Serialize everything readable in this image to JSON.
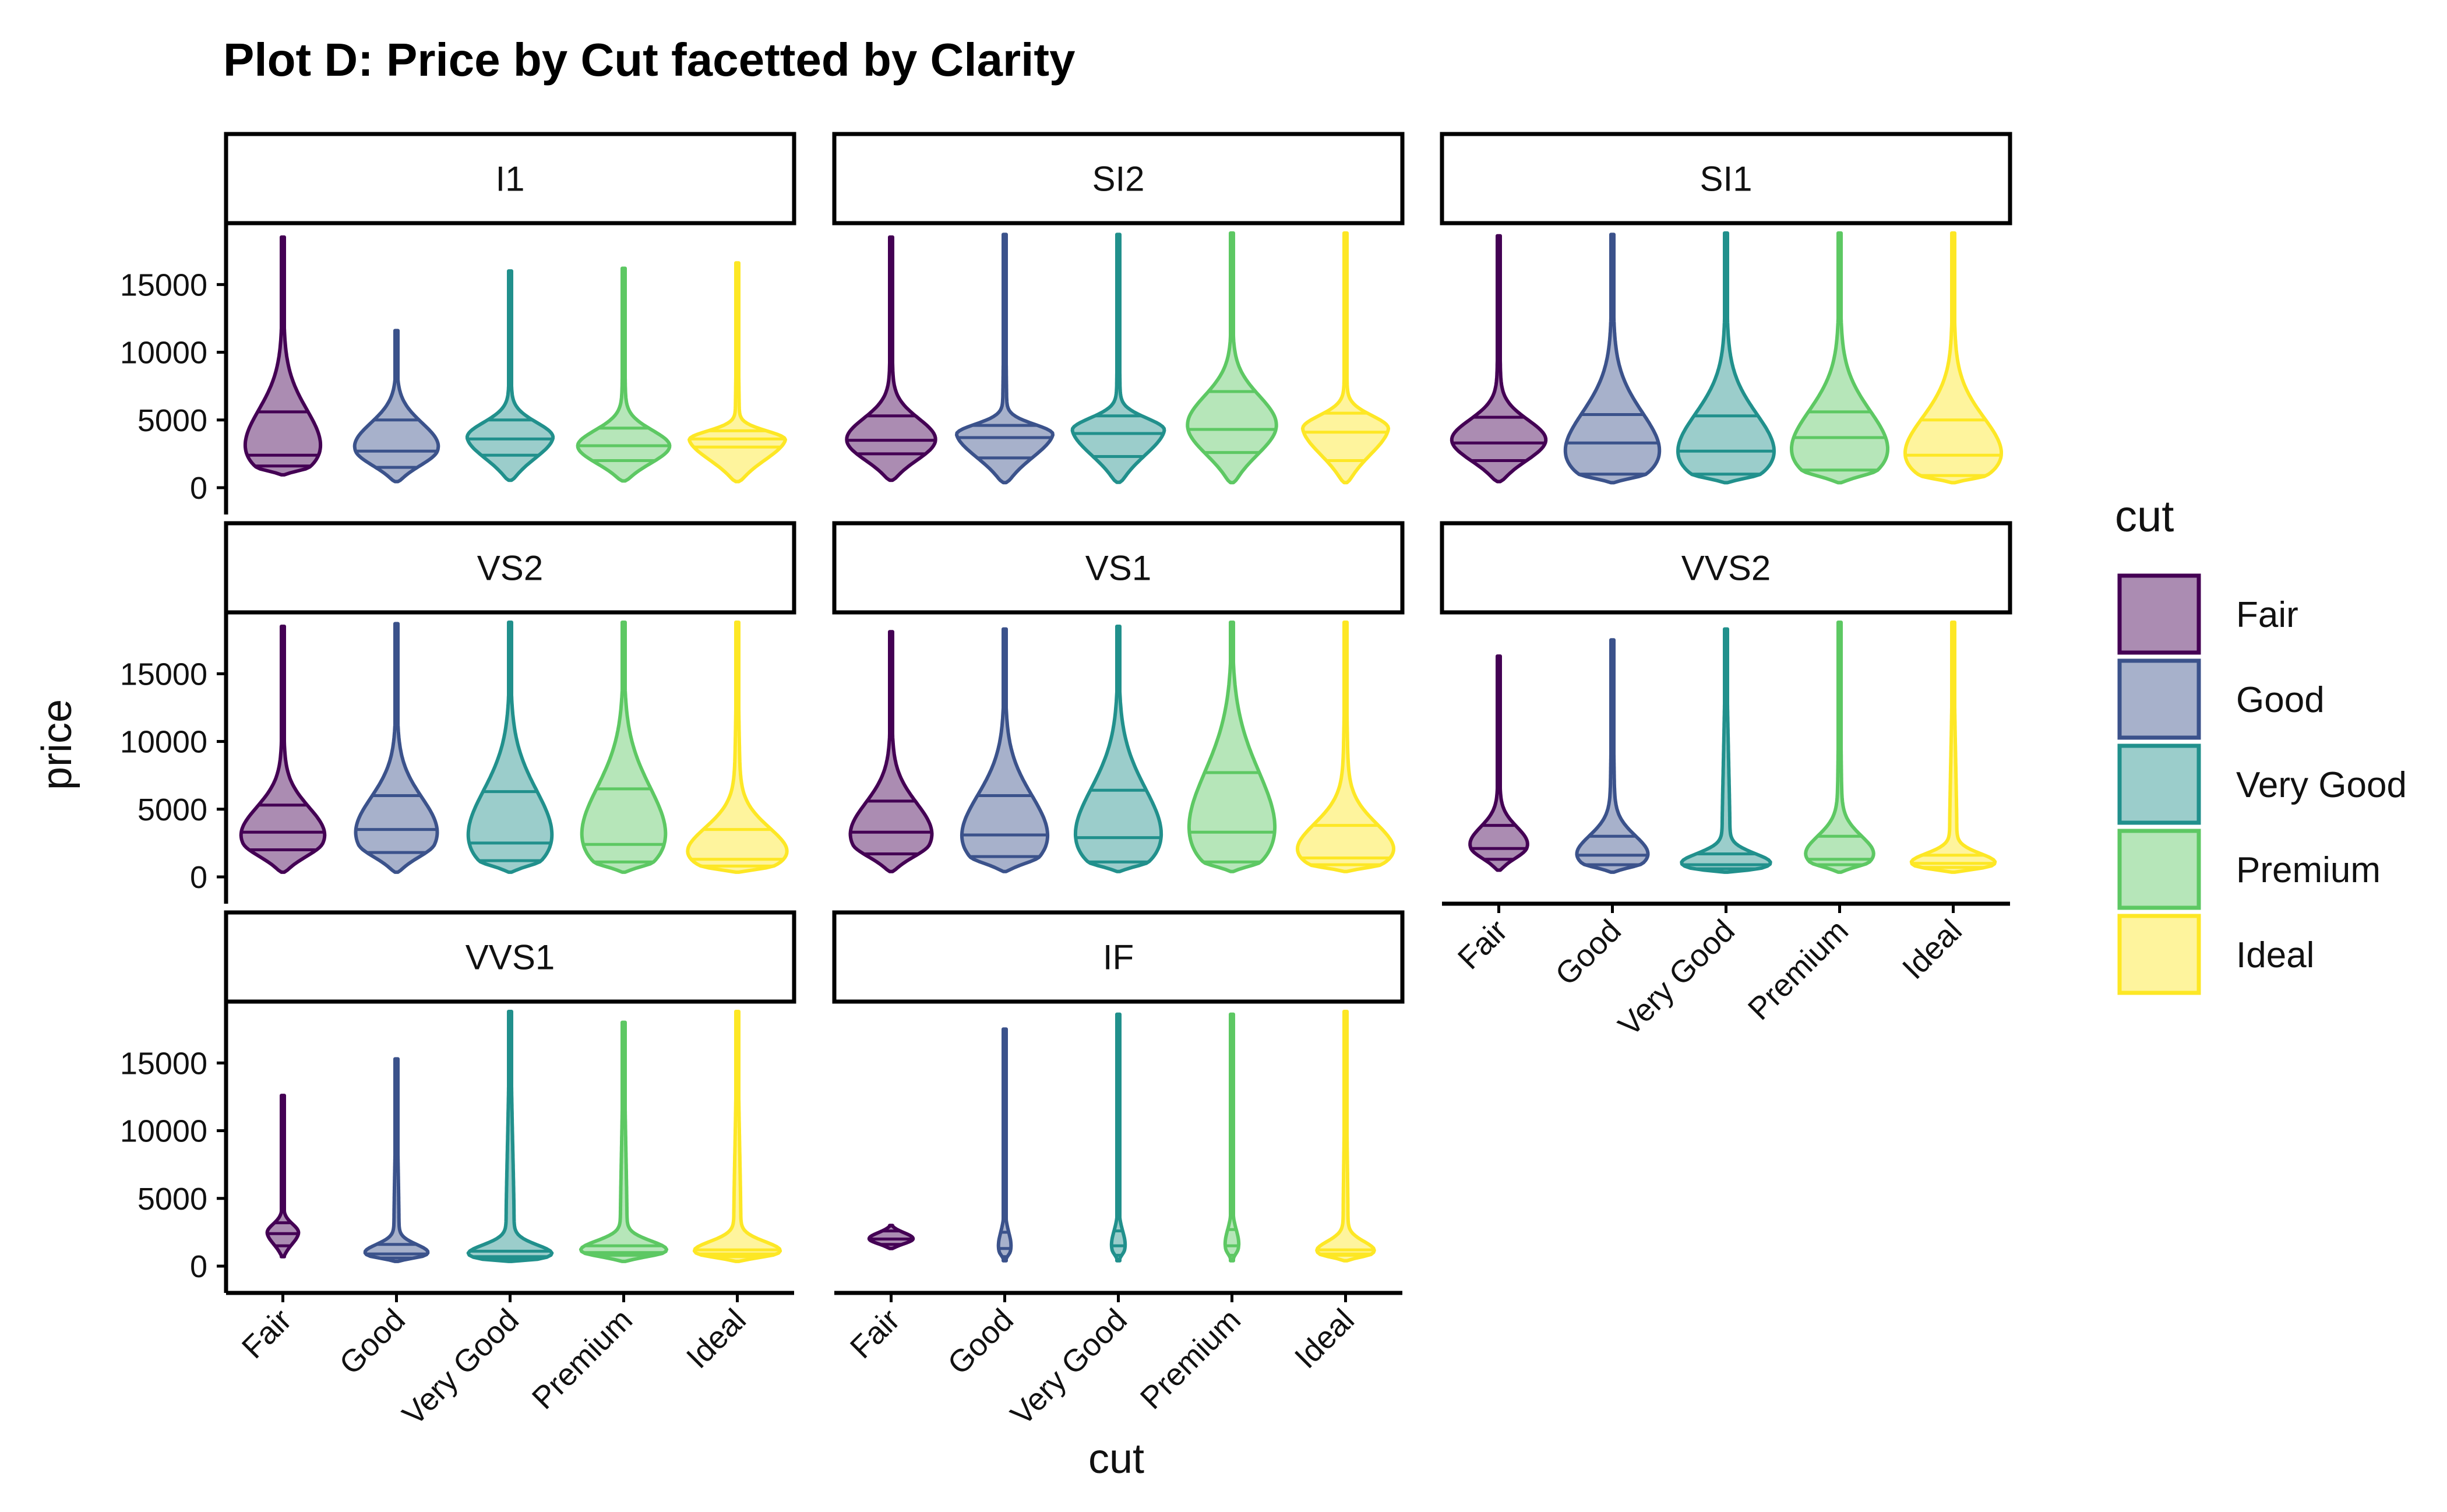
{
  "chart_data": {
    "type": "violin",
    "title": "Plot D: Price by Cut facetted by Clarity",
    "xlabel": "cut",
    "ylabel": "price",
    "categories": [
      "Fair",
      "Good",
      "Very Good",
      "Premium",
      "Ideal"
    ],
    "ylim": [
      0,
      18500
    ],
    "yticks": [
      0,
      5000,
      10000,
      15000
    ],
    "draw_quantiles": [
      0.25,
      0.5,
      0.75
    ],
    "legend": {
      "title": "cut",
      "position": "right",
      "entries": [
        "Fair",
        "Good",
        "Very Good",
        "Premium",
        "Ideal"
      ]
    },
    "colors": {
      "Fair": "#440154",
      "Good": "#3B528B",
      "Very Good": "#21908C",
      "Premium": "#5DC863",
      "Ideal": "#FDE725"
    },
    "facets": [
      {
        "name": "I1",
        "violins": [
          {
            "cut": "Fair",
            "min": 950,
            "max": 18500,
            "q1": 1600,
            "median": 2400,
            "q3": 5600,
            "mode": 1500,
            "w": 0.72
          },
          {
            "cut": "Good",
            "min": 450,
            "max": 11600,
            "q1": 1500,
            "median": 2700,
            "q3": 5000,
            "mode": 2700,
            "w": 0.8
          },
          {
            "cut": "Very Good",
            "min": 550,
            "max": 16000,
            "q1": 2400,
            "median": 3600,
            "q3": 5000,
            "mode": 3600,
            "w": 0.82
          },
          {
            "cut": "Premium",
            "min": 500,
            "max": 16200,
            "q1": 2000,
            "median": 3100,
            "q3": 4400,
            "mode": 2900,
            "w": 0.88
          },
          {
            "cut": "Ideal",
            "min": 450,
            "max": 16600,
            "q1": 3000,
            "median": 3600,
            "q3": 4200,
            "mode": 3500,
            "w": 0.92
          }
        ]
      },
      {
        "name": "SI2",
        "violins": [
          {
            "cut": "Fair",
            "min": 550,
            "max": 18500,
            "q1": 2500,
            "median": 3500,
            "q3": 5300,
            "mode": 3300,
            "w": 0.85
          },
          {
            "cut": "Good",
            "min": 380,
            "max": 18700,
            "q1": 2200,
            "median": 3700,
            "q3": 4600,
            "mode": 3900,
            "w": 0.92
          },
          {
            "cut": "Very Good",
            "min": 400,
            "max": 18700,
            "q1": 2300,
            "median": 4000,
            "q3": 5300,
            "mode": 4200,
            "w": 0.88
          },
          {
            "cut": "Premium",
            "min": 380,
            "max": 18800,
            "q1": 2600,
            "median": 4300,
            "q3": 7100,
            "mode": 4300,
            "w": 0.85
          },
          {
            "cut": "Ideal",
            "min": 380,
            "max": 18800,
            "q1": 2000,
            "median": 4100,
            "q3": 5500,
            "mode": 4300,
            "w": 0.82
          }
        ]
      },
      {
        "name": "SI1",
        "violins": [
          {
            "cut": "Fair",
            "min": 450,
            "max": 18600,
            "q1": 2000,
            "median": 3300,
            "q3": 5200,
            "mode": 3300,
            "w": 0.9
          },
          {
            "cut": "Good",
            "min": 370,
            "max": 18700,
            "q1": 1000,
            "median": 3300,
            "q3": 5400,
            "mode": 1000,
            "w": 0.9
          },
          {
            "cut": "Very Good",
            "min": 370,
            "max": 18800,
            "q1": 1000,
            "median": 2700,
            "q3": 5300,
            "mode": 1000,
            "w": 0.92
          },
          {
            "cut": "Premium",
            "min": 370,
            "max": 18800,
            "q1": 1300,
            "median": 3700,
            "q3": 5600,
            "mode": 1300,
            "w": 0.92
          },
          {
            "cut": "Ideal",
            "min": 370,
            "max": 18800,
            "q1": 900,
            "median": 2400,
            "q3": 5000,
            "mode": 900,
            "w": 0.92
          }
        ]
      },
      {
        "name": "VS2",
        "violins": [
          {
            "cut": "Fair",
            "min": 350,
            "max": 18500,
            "q1": 2000,
            "median": 3300,
            "q3": 5300,
            "mode": 2500,
            "w": 0.8
          },
          {
            "cut": "Good",
            "min": 350,
            "max": 18700,
            "q1": 1800,
            "median": 3500,
            "q3": 6000,
            "mode": 2400,
            "w": 0.78
          },
          {
            "cut": "Very Good",
            "min": 350,
            "max": 18800,
            "q1": 1200,
            "median": 2500,
            "q3": 6300,
            "mode": 1200,
            "w": 0.8
          },
          {
            "cut": "Premium",
            "min": 350,
            "max": 18800,
            "q1": 1100,
            "median": 2400,
            "q3": 6500,
            "mode": 1100,
            "w": 0.8
          },
          {
            "cut": "Ideal",
            "min": 350,
            "max": 18800,
            "q1": 800,
            "median": 1300,
            "q3": 3500,
            "mode": 800,
            "w": 0.95
          }
        ]
      },
      {
        "name": "VS1",
        "violins": [
          {
            "cut": "Fair",
            "min": 400,
            "max": 18100,
            "q1": 1700,
            "median": 3300,
            "q3": 5600,
            "mode": 2400,
            "w": 0.78
          },
          {
            "cut": "Good",
            "min": 400,
            "max": 18300,
            "q1": 1500,
            "median": 3100,
            "q3": 6000,
            "mode": 1500,
            "w": 0.82
          },
          {
            "cut": "Very Good",
            "min": 400,
            "max": 18500,
            "q1": 1100,
            "median": 2900,
            "q3": 6400,
            "mode": 1100,
            "w": 0.82
          },
          {
            "cut": "Premium",
            "min": 400,
            "max": 18800,
            "q1": 1100,
            "median": 3300,
            "q3": 7700,
            "mode": 1100,
            "w": 0.82
          },
          {
            "cut": "Ideal",
            "min": 400,
            "max": 18800,
            "q1": 900,
            "median": 1400,
            "q3": 3800,
            "mode": 900,
            "w": 0.92
          }
        ]
      },
      {
        "name": "VVS2",
        "violins": [
          {
            "cut": "Fair",
            "min": 500,
            "max": 16300,
            "q1": 1300,
            "median": 2100,
            "q3": 3800,
            "mode": 2100,
            "w": 0.55
          },
          {
            "cut": "Good",
            "min": 350,
            "max": 17500,
            "q1": 900,
            "median": 1600,
            "q3": 3000,
            "mode": 1000,
            "w": 0.68
          },
          {
            "cut": "Very Good",
            "min": 350,
            "max": 18300,
            "q1": 600,
            "median": 900,
            "q3": 1700,
            "mode": 700,
            "w": 0.85
          },
          {
            "cut": "Premium",
            "min": 350,
            "max": 18800,
            "q1": 900,
            "median": 1300,
            "q3": 3000,
            "mode": 1100,
            "w": 0.65
          },
          {
            "cut": "Ideal",
            "min": 350,
            "max": 18800,
            "q1": 700,
            "median": 1000,
            "q3": 1600,
            "mode": 800,
            "w": 0.8
          }
        ]
      },
      {
        "name": "VVS1",
        "violins": [
          {
            "cut": "Fair",
            "min": 700,
            "max": 12600,
            "q1": 1500,
            "median": 2400,
            "q3": 3200,
            "mode": 2400,
            "w": 0.3
          },
          {
            "cut": "Good",
            "min": 350,
            "max": 15300,
            "q1": 600,
            "median": 900,
            "q3": 1600,
            "mode": 800,
            "w": 0.6
          },
          {
            "cut": "Very Good",
            "min": 350,
            "max": 18800,
            "q1": 500,
            "median": 700,
            "q3": 1100,
            "mode": 600,
            "w": 0.8
          },
          {
            "cut": "Premium",
            "min": 350,
            "max": 18000,
            "q1": 800,
            "median": 1000,
            "q3": 1500,
            "mode": 1000,
            "w": 0.82
          },
          {
            "cut": "Ideal",
            "min": 350,
            "max": 18800,
            "q1": 700,
            "median": 900,
            "q3": 1200,
            "mode": 900,
            "w": 0.82
          }
        ]
      },
      {
        "name": "IF",
        "violins": [
          {
            "cut": "Fair",
            "min": 1300,
            "max": 3000,
            "q1": 1600,
            "median": 2000,
            "q3": 2600,
            "mode": 2000,
            "w": 0.42
          },
          {
            "cut": "Good",
            "min": 400,
            "max": 17500,
            "q1": 700,
            "median": 1300,
            "q3": 2500,
            "mode": 1100,
            "w": 0.12
          },
          {
            "cut": "Very Good",
            "min": 400,
            "max": 18600,
            "q1": 800,
            "median": 1500,
            "q3": 2600,
            "mode": 1200,
            "w": 0.13
          },
          {
            "cut": "Premium",
            "min": 400,
            "max": 18600,
            "q1": 800,
            "median": 1500,
            "q3": 2700,
            "mode": 1300,
            "w": 0.13
          },
          {
            "cut": "Ideal",
            "min": 400,
            "max": 18800,
            "q1": 800,
            "median": 900,
            "q3": 1200,
            "mode": 900,
            "w": 0.55
          }
        ]
      }
    ]
  }
}
